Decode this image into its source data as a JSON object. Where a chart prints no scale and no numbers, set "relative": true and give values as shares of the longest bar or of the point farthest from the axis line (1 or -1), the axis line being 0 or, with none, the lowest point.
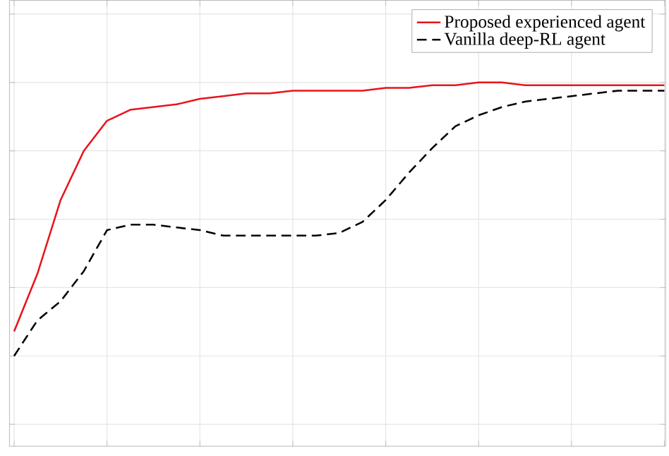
{
  "chart_data": {
    "type": "line",
    "relative": true,
    "grid": true,
    "legend": "top right",
    "categories": [
      null,
      null,
      null,
      null,
      null,
      null,
      null,
      null,
      null,
      null,
      null,
      null,
      null,
      null,
      null,
      null,
      null,
      null,
      null,
      null,
      null,
      null,
      null,
      null,
      null,
      null,
      null,
      null,
      null
    ],
    "series": [
      {
        "name": "Proposed experienced agent",
        "color": "#e8141b",
        "line_style": "solid",
        "values": [
          0.09,
          0.3,
          0.57,
          0.75,
          0.86,
          0.9,
          0.91,
          0.92,
          0.94,
          0.95,
          0.96,
          0.96,
          0.97,
          0.97,
          0.97,
          0.97,
          0.98,
          0.98,
          0.99,
          0.99,
          1.0,
          1.0,
          0.99,
          0.99,
          0.99,
          0.99,
          0.99,
          0.99,
          0.99
        ]
      },
      {
        "name": "Vanilla deep-RL agent",
        "color": "#000000",
        "line_style": "dashed",
        "values": [
          0,
          0.13,
          0.2,
          0.31,
          0.46,
          0.48,
          0.48,
          0.47,
          0.46,
          0.44,
          0.44,
          0.44,
          0.44,
          0.44,
          0.45,
          0.49,
          0.57,
          0.67,
          0.76,
          0.84,
          0.88,
          0.91,
          0.93,
          0.94,
          0.95,
          0.96,
          0.97,
          0.97,
          0.97
        ]
      }
    ]
  }
}
